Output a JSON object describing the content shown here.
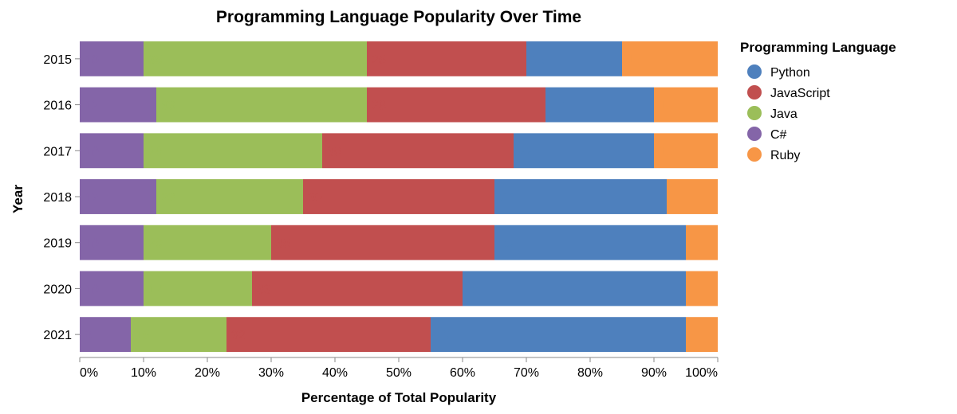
{
  "chart_data": {
    "type": "bar",
    "orientation": "horizontal",
    "stacked": "normalize",
    "title": "Programming Language Popularity Over Time",
    "xlabel": "Percentage of Total Popularity",
    "ylabel": "Year",
    "xlim": [
      0,
      100
    ],
    "x_ticks": [
      "0%",
      "10%",
      "20%",
      "30%",
      "40%",
      "50%",
      "60%",
      "70%",
      "80%",
      "90%",
      "100%"
    ],
    "categories": [
      "2015",
      "2016",
      "2017",
      "2018",
      "2019",
      "2020",
      "2021"
    ],
    "legend_title": "Programming Language",
    "legend_position": "right",
    "grid": false,
    "series": [
      {
        "name": "C#",
        "color": "#8465a8",
        "values": [
          10,
          12,
          10,
          12,
          10,
          10,
          8
        ]
      },
      {
        "name": "Java",
        "color": "#9bbe59",
        "values": [
          35,
          33,
          28,
          23,
          20,
          17,
          15
        ]
      },
      {
        "name": "JavaScript",
        "color": "#c14f4f",
        "values": [
          25,
          28,
          30,
          30,
          35,
          33,
          32
        ]
      },
      {
        "name": "Python",
        "color": "#4e80bd",
        "values": [
          15,
          17,
          22,
          27,
          30,
          35,
          40
        ]
      },
      {
        "name": "Ruby",
        "color": "#f79646",
        "values": [
          15,
          10,
          10,
          8,
          5,
          5,
          5
        ]
      }
    ],
    "legend_order": [
      "Python",
      "JavaScript",
      "Java",
      "C#",
      "Ruby"
    ]
  }
}
